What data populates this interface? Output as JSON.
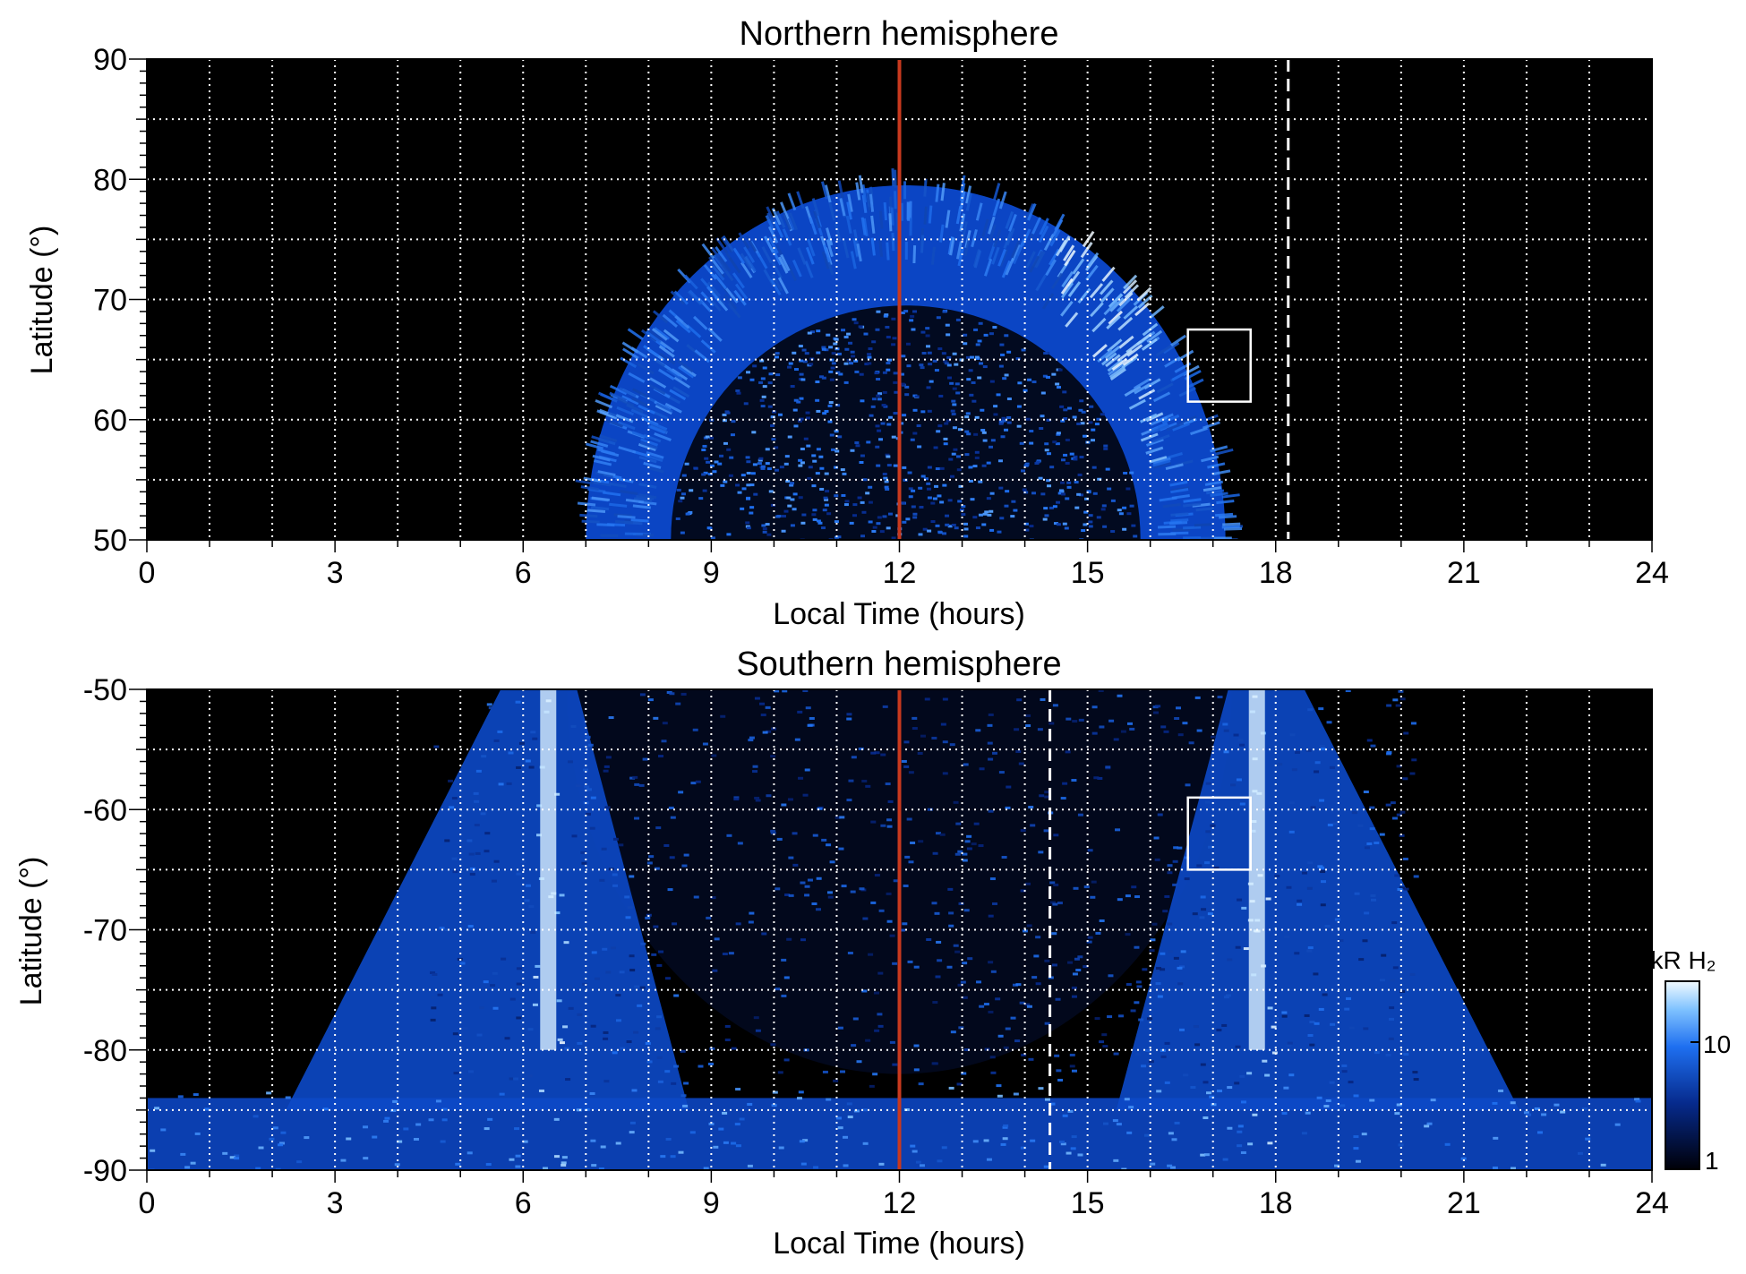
{
  "colors": {
    "background": "#000000",
    "grid": "#ffffff",
    "noon_line": "#c8391e",
    "aurora_dim": "#0a3a9c",
    "aurora_mid": "#1e6ff0",
    "aurora_bright": "#bfe6ff"
  },
  "colorbar": {
    "label": "kR H₂",
    "ticks": [
      "1",
      "10"
    ],
    "scale": "log"
  },
  "chart_data": [
    {
      "type": "heatmap",
      "title": "Northern hemisphere",
      "xlabel": "Local Time (hours)",
      "ylabel": "Latitude (°)",
      "xlim": [
        0,
        24
      ],
      "ylim": [
        50,
        90
      ],
      "xticks": [
        0,
        3,
        6,
        9,
        12,
        15,
        18,
        21,
        24
      ],
      "yticks": [
        50,
        60,
        70,
        80,
        90
      ],
      "grid": true,
      "noon_line_x": 12,
      "dashed_line_x": 18.2,
      "box": {
        "x0": 16.6,
        "x1": 17.6,
        "y0": 61.5,
        "y1": 67.5
      },
      "auroral_oval": {
        "center_lt": 12.1,
        "poleward_edge_lat_noon": 79.5,
        "equatorward_edge_lat_noon": 69.5,
        "dawn_end_lt": 7.0,
        "dusk_end_lt": 17.2,
        "bright_lt": [
          14.5,
          16.0
        ]
      }
    },
    {
      "type": "heatmap",
      "title": "Southern hemisphere",
      "xlabel": "Local Time (hours)",
      "ylabel": "Latitude (°)",
      "xlim": [
        0,
        24
      ],
      "ylim": [
        -90,
        -50
      ],
      "xticks": [
        0,
        3,
        6,
        9,
        12,
        15,
        18,
        21,
        24
      ],
      "yticks": [
        -90,
        -80,
        -70,
        -60,
        -50
      ],
      "grid": true,
      "noon_line_x": 12,
      "dashed_line_x": 14.4,
      "box": {
        "x0": 16.6,
        "x1": 17.6,
        "y0": -65,
        "y1": -59
      },
      "auroral_oval": {
        "dawn_arc_lt": 6.5,
        "dusk_arc_lt": 17.6,
        "bright_lt": [
          6.4,
          17.7
        ]
      }
    }
  ]
}
